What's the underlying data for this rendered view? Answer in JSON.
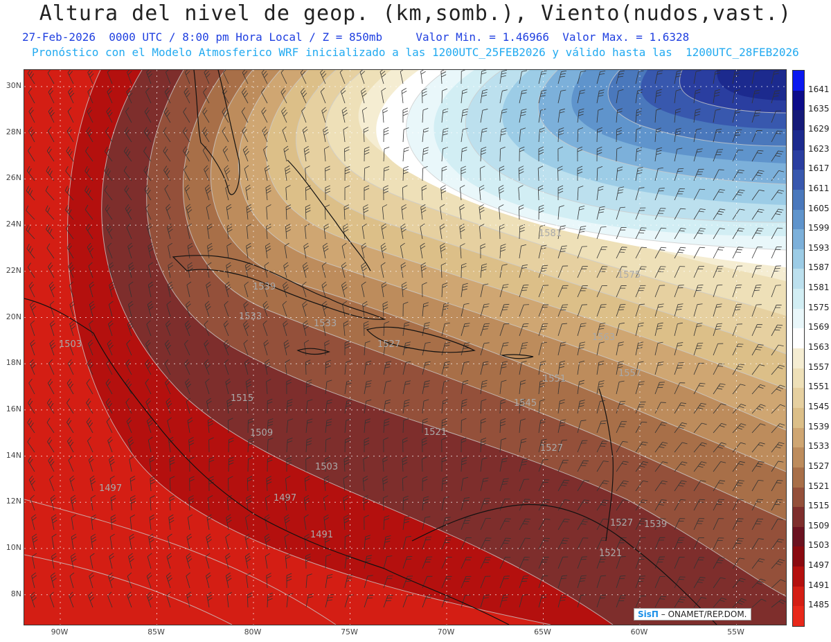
{
  "header": {
    "title": "Altura del nivel de geop. (km,somb.), Viento(nudos,vast.)",
    "line1": "27-Feb-2026  0000 UTC / 8:00 pm Hora Local / Z = 850mb     Valor Min. = 1.46966  Valor Max. = 1.6328",
    "line2": "Pronóstico con el Modelo Atmosferico WRF inicializado a las 1200UTC_25FEB2026 y válido hasta las  1200UTC_28FEB2026"
  },
  "axes": {
    "lat_labels": [
      "30N",
      "28N",
      "26N",
      "24N",
      "22N",
      "20N",
      "18N",
      "16N",
      "14N",
      "12N",
      "10N",
      "8N"
    ],
    "lon_labels": [
      "90W",
      "85W",
      "80W",
      "75W",
      "70W",
      "65W",
      "60W",
      "55W"
    ]
  },
  "legend": {
    "values": [
      "1641",
      "1635",
      "1629",
      "1623",
      "1617",
      "1611",
      "1605",
      "1599",
      "1593",
      "1587",
      "1581",
      "1575",
      "1569",
      "1563",
      "1557",
      "1551",
      "1545",
      "1539",
      "1533",
      "1527",
      "1521",
      "1515",
      "1509",
      "1503",
      "1497",
      "1491",
      "1485"
    ],
    "colors": [
      "#0a18f0",
      "#0c0c8a",
      "#151a78",
      "#1c2a8e",
      "#2a3ea0",
      "#3858ae",
      "#4a78bc",
      "#5f94cc",
      "#7cb0da",
      "#9ccce6",
      "#bce0ee",
      "#d2eef4",
      "#e9f7fa",
      "#ffffff",
      "#f5edd2",
      "#eee0b8",
      "#e6d0a0",
      "#dcbf88",
      "#cfa672",
      "#bd8c5c",
      "#a86f48",
      "#94503a",
      "#7e2e2c",
      "#6b1220",
      "#8a0a10",
      "#b4100e",
      "#d41e14",
      "#e8281a"
    ]
  },
  "contour_labels": [
    "1503",
    "1515",
    "1509",
    "1503",
    "1497",
    "1497",
    "1491",
    "1521",
    "1527",
    "1533",
    "1539",
    "1545",
    "1551",
    "1557",
    "1563",
    "1575",
    "1581",
    "1533",
    "1527",
    "1521",
    "1527",
    "1539"
  ],
  "credit": {
    "brand": "SisΠ",
    "text": "– ONAMET/REP.DOM."
  }
}
